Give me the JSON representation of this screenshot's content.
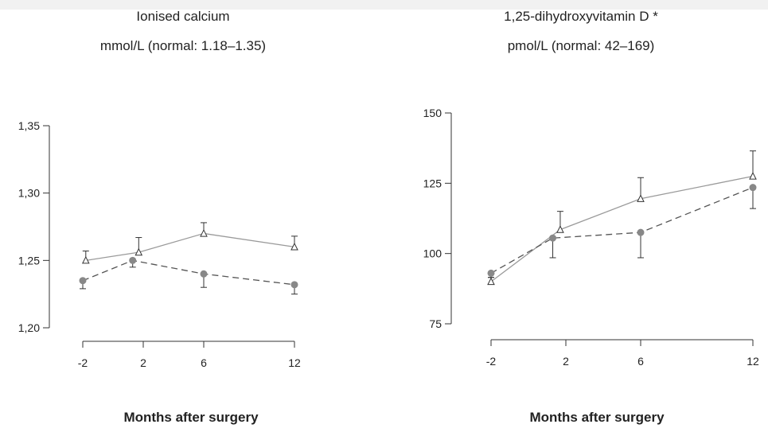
{
  "chart_data": [
    {
      "type": "line",
      "title": "Ionised calcium",
      "subtitle": "mmol/L (normal: 1.18–1.35)",
      "xlabel": "Months after surgery",
      "ylabel": "",
      "x": [
        -2,
        2,
        6,
        12
      ],
      "x_tick_labels": [
        "-2",
        "2",
        "6",
        "12"
      ],
      "ylim": [
        1.2,
        1.35
      ],
      "y_ticks": [
        1.2,
        1.25,
        1.3,
        1.35
      ],
      "y_tick_labels": [
        "1,20",
        "1,25",
        "1,30",
        "1,35"
      ],
      "grid": false,
      "series": [
        {
          "marker": "open-triangle",
          "line": "solid",
          "color": "#9a9a9a",
          "x": [
            -1.8,
            1.7,
            6,
            12
          ],
          "values": [
            1.25,
            1.256,
            1.27,
            1.26
          ],
          "error": [
            0.007,
            0.011,
            0.008,
            0.008
          ],
          "error_dir": "up"
        },
        {
          "marker": "filled-circle",
          "line": "dashed",
          "color": "#555555",
          "x": [
            -2,
            1.3,
            6,
            12
          ],
          "values": [
            1.235,
            1.25,
            1.24,
            1.232
          ],
          "error": [
            0.006,
            0.005,
            0.01,
            0.007
          ],
          "error_dir": "down"
        }
      ]
    },
    {
      "type": "line",
      "title": "1,25-dihydroxyvitamin D *",
      "subtitle": "pmol/L (normal: 42–169)",
      "xlabel": "Months after surgery",
      "ylabel": "",
      "x": [
        -2,
        2,
        6,
        12
      ],
      "x_tick_labels": [
        "-2",
        "2",
        "6",
        "12"
      ],
      "ylim": [
        75,
        150
      ],
      "y_ticks": [
        75,
        100,
        125,
        150
      ],
      "y_tick_labels": [
        "75",
        "100",
        "125",
        "150"
      ],
      "grid": false,
      "series": [
        {
          "marker": "open-triangle",
          "line": "solid",
          "color": "#9a9a9a",
          "x": [
            -2,
            1.7,
            6,
            12
          ],
          "values": [
            90,
            108.5,
            119.5,
            127.5
          ],
          "error": [
            1.5,
            6.5,
            7.5,
            9
          ],
          "error_dir": "up"
        },
        {
          "marker": "filled-circle",
          "line": "dashed",
          "color": "#555555",
          "x": [
            -2,
            1.3,
            6,
            12
          ],
          "values": [
            93,
            105.5,
            107.5,
            123.5
          ],
          "error": [
            1.5,
            7,
            9,
            7.5
          ],
          "error_dir": "down"
        }
      ]
    }
  ]
}
